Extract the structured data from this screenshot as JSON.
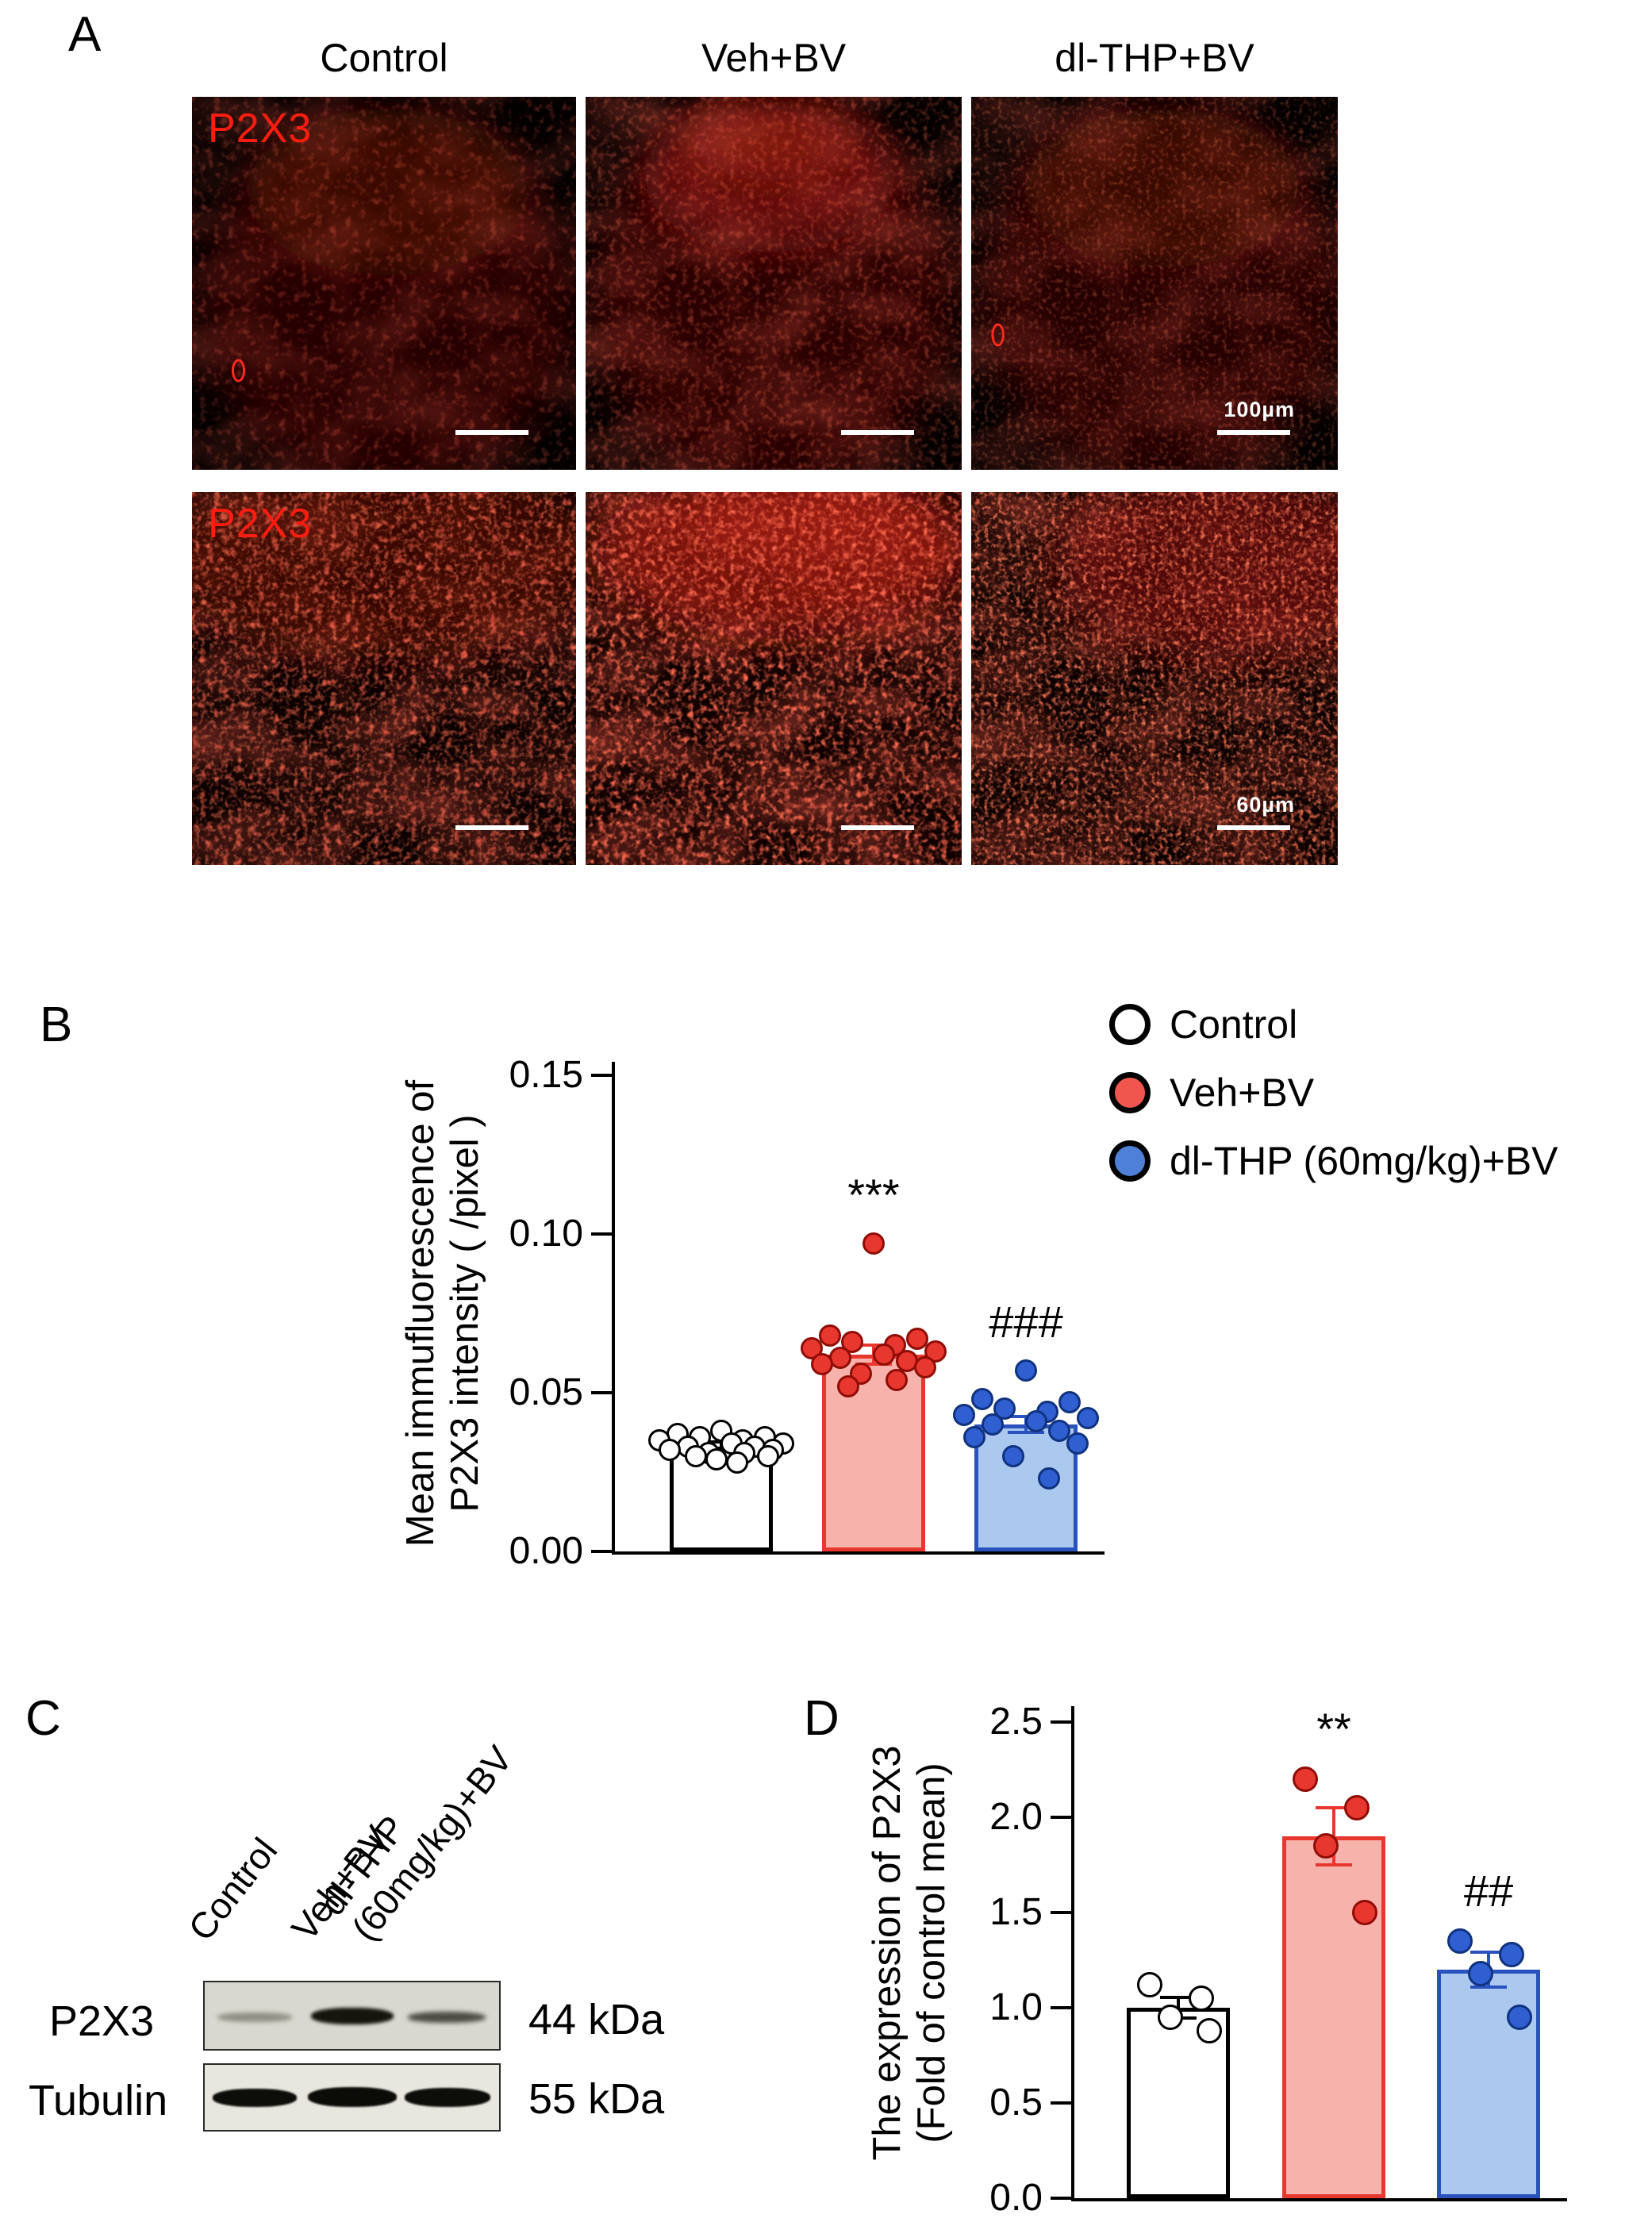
{
  "panels": {
    "a": {
      "label": "A",
      "column_headers": [
        "Control",
        "Veh+BV",
        "dl-THP+BV"
      ],
      "stain_label": "P2X3",
      "scalebar_row1": "100µm",
      "scalebar_row2": "60µm"
    },
    "b": {
      "label": "B",
      "legend": [
        {
          "label": "Control",
          "fill": "#ffffff"
        },
        {
          "label": "Veh+BV",
          "fill": "#f0564d"
        },
        {
          "label": "dl-THP (60mg/kg)+BV",
          "fill": "#4d80d6"
        }
      ]
    },
    "c": {
      "label": "C",
      "lane_labels": [
        "Control",
        "Veh+BV",
        "dl-THP\n(60mg/kg)+BV"
      ],
      "rows": [
        {
          "protein": "P2X3",
          "kda": "44 kDa"
        },
        {
          "protein": "Tubulin",
          "kda": "55 kDa"
        }
      ]
    },
    "d": {
      "label": "D"
    }
  },
  "chart_data": [
    {
      "id": "B",
      "type": "bar",
      "title": "",
      "ylabel_lines": [
        "Mean immufluorescence of",
        "P2X3 intensity ( /pixel )"
      ],
      "categories": [
        "Control",
        "Veh+BV",
        "dl-THP (60mg/kg)+BV"
      ],
      "ylim": [
        0,
        0.15
      ],
      "yticks": [
        "0.00",
        "0.05",
        "0.10",
        "0.15"
      ],
      "grid": false,
      "legend_position": "top-right",
      "series": [
        {
          "name": "Control",
          "mean": 0.033,
          "sem": 0.0015,
          "annotation": "",
          "bar_fill": "#ffffff",
          "stroke": "#000000",
          "point_fill": "#ffffff",
          "point_stroke": "#000000",
          "points": [
            0.038,
            0.037,
            0.036,
            0.036,
            0.035,
            0.035,
            0.034,
            0.034,
            0.033,
            0.033,
            0.032,
            0.032,
            0.031,
            0.031,
            0.03,
            0.03,
            0.029,
            0.028
          ]
        },
        {
          "name": "Veh+BV",
          "mean": 0.062,
          "sem": 0.003,
          "annotation": "***",
          "bar_fill": "#f8b2ac",
          "stroke": "#e8372e",
          "point_fill": "#e8372e",
          "point_stroke": "#8f0d06",
          "points": [
            0.097,
            0.068,
            0.067,
            0.066,
            0.065,
            0.064,
            0.063,
            0.062,
            0.061,
            0.06,
            0.059,
            0.058,
            0.056,
            0.054,
            0.052
          ]
        },
        {
          "name": "dl-THP (60mg/kg)+BV",
          "mean": 0.04,
          "sem": 0.0025,
          "annotation": "###",
          "bar_fill": "#abc8ef",
          "stroke": "#2a52be",
          "point_fill": "#2f5fd0",
          "point_stroke": "#10327f",
          "points": [
            0.057,
            0.048,
            0.047,
            0.045,
            0.044,
            0.043,
            0.042,
            0.041,
            0.04,
            0.038,
            0.036,
            0.034,
            0.03,
            0.023
          ]
        }
      ]
    },
    {
      "id": "D",
      "type": "bar",
      "title": "",
      "ylabel_lines": [
        "The expression of P2X3",
        "(Fold of control mean)"
      ],
      "categories": [
        "Control",
        "Veh+BV",
        "dl-THP (60mg/kg)+BV"
      ],
      "ylim": [
        0,
        2.5
      ],
      "yticks": [
        "0.0",
        "0.5",
        "1.0",
        "1.5",
        "2.0",
        "2.5"
      ],
      "grid": false,
      "series": [
        {
          "name": "Control",
          "mean": 1.0,
          "sem": 0.055,
          "annotation": "",
          "bar_fill": "#ffffff",
          "stroke": "#000000",
          "point_fill": "#ffffff",
          "point_stroke": "#000000",
          "points": [
            1.12,
            1.05,
            0.95,
            0.88
          ]
        },
        {
          "name": "Veh+BV",
          "mean": 1.9,
          "sem": 0.15,
          "annotation": "**",
          "bar_fill": "#f8b2ac",
          "stroke": "#e8372e",
          "point_fill": "#e8372e",
          "point_stroke": "#8f0d06",
          "points": [
            2.2,
            2.05,
            1.85,
            1.5
          ]
        },
        {
          "name": "dl-THP (60mg/kg)+BV",
          "mean": 1.2,
          "sem": 0.09,
          "annotation": "##",
          "bar_fill": "#abc8ef",
          "stroke": "#2a52be",
          "point_fill": "#2f5fd0",
          "point_stroke": "#10327f",
          "points": [
            1.35,
            1.28,
            1.18,
            0.95
          ]
        }
      ]
    }
  ]
}
